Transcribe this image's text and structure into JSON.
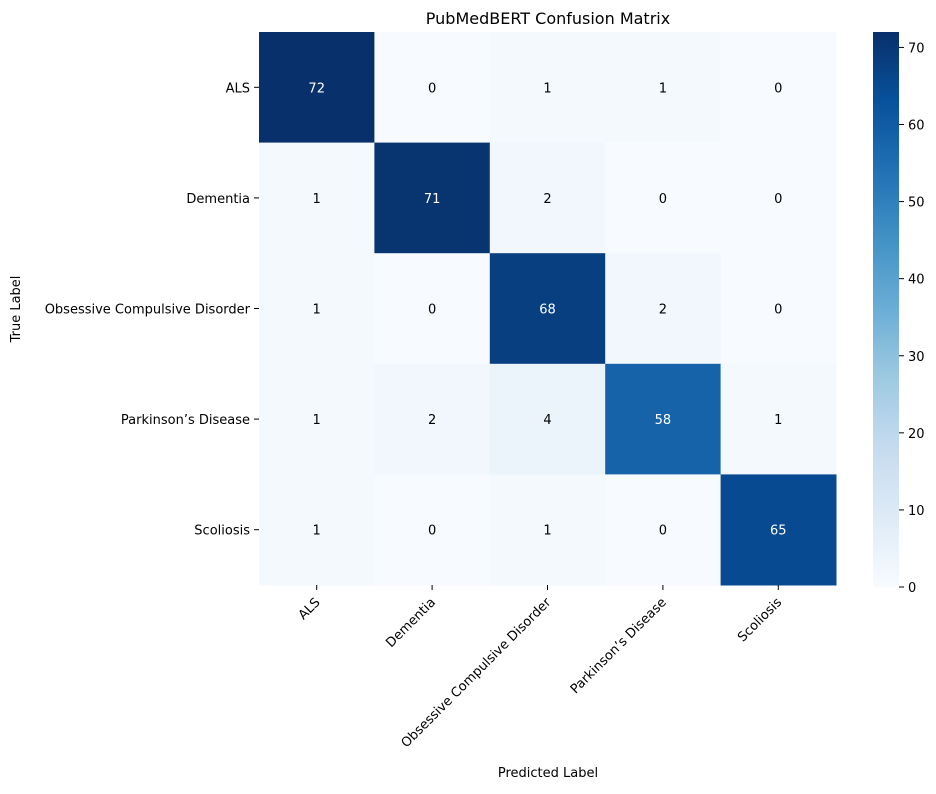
{
  "chart_data": {
    "type": "heatmap",
    "title": "PubMedBERT Confusion Matrix",
    "xlabel": "Predicted Label",
    "ylabel": "True Label",
    "x_categories": [
      "ALS",
      "Dementia",
      "Obsessive Compulsive Disorder",
      "Parkinson’s Disease",
      "Scoliosis"
    ],
    "y_categories": [
      "ALS",
      "Dementia",
      "Obsessive Compulsive Disorder",
      "Parkinson’s Disease",
      "Scoliosis"
    ],
    "values": [
      [
        72,
        0,
        1,
        1,
        0
      ],
      [
        1,
        71,
        2,
        0,
        0
      ],
      [
        1,
        0,
        68,
        2,
        0
      ],
      [
        1,
        2,
        4,
        58,
        1
      ],
      [
        1,
        0,
        1,
        0,
        65
      ]
    ],
    "colorbar": {
      "colormap": "Blues",
      "range": [
        0,
        72
      ],
      "ticks": [
        0,
        10,
        20,
        30,
        40,
        50,
        60,
        70
      ]
    },
    "annotations_shown": true,
    "grid": false
  }
}
